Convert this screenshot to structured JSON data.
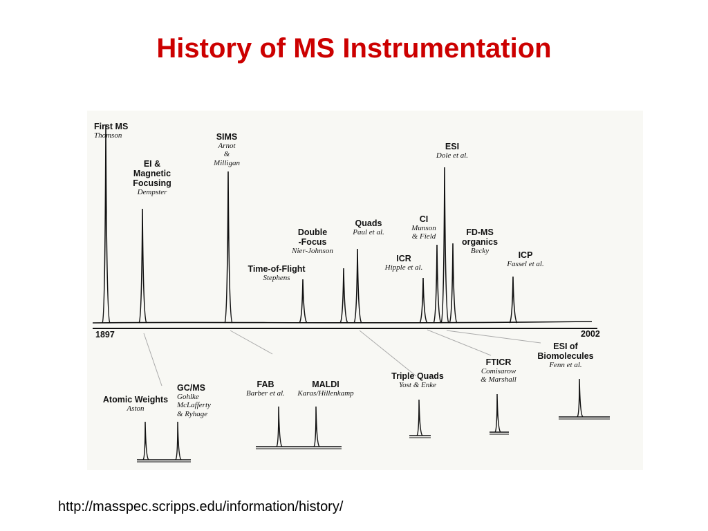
{
  "title": "History of MS Instrumentation",
  "axis": {
    "start_year": "1897",
    "end_year": "2002"
  },
  "upper_events": [
    {
      "id": "first-ms",
      "name": [
        "First MS"
      ],
      "authors": [
        "Thomson"
      ]
    },
    {
      "id": "ei-magnetic-focusing",
      "name": [
        "EI &",
        "Magnetic",
        "Focusing"
      ],
      "authors": [
        "Dempster"
      ]
    },
    {
      "id": "sims",
      "name": [
        "SIMS"
      ],
      "authors": [
        "Arnot",
        "&",
        "Milligan"
      ]
    },
    {
      "id": "time-of-flight",
      "name": [
        "Time-of-Flight"
      ],
      "authors": [
        "Stephens"
      ]
    },
    {
      "id": "double-focus",
      "name": [
        "Double",
        "-Focus"
      ],
      "authors": [
        "Nier-Johnson"
      ]
    },
    {
      "id": "quads",
      "name": [
        "Quads"
      ],
      "authors": [
        "Paul et al."
      ]
    },
    {
      "id": "icr",
      "name": [
        "ICR"
      ],
      "authors": [
        "Hipple et al."
      ]
    },
    {
      "id": "ci",
      "name": [
        "CI"
      ],
      "authors": [
        "Munson",
        "& Field"
      ]
    },
    {
      "id": "esi",
      "name": [
        "ESI"
      ],
      "authors": [
        "Dole et al."
      ]
    },
    {
      "id": "fd-ms-organics",
      "name": [
        "FD-MS",
        "organics"
      ],
      "authors": [
        "Becky"
      ]
    },
    {
      "id": "icp",
      "name": [
        "ICP"
      ],
      "authors": [
        "Fassel et al."
      ]
    }
  ],
  "lower_events": [
    {
      "id": "atomic-weights",
      "name": [
        "Atomic Weights"
      ],
      "authors": [
        "Aston"
      ]
    },
    {
      "id": "gc-ms",
      "name": [
        "GC/MS"
      ],
      "authors": [
        "Gohlke",
        "McLafferty",
        "& Ryhage"
      ]
    },
    {
      "id": "fab",
      "name": [
        "FAB"
      ],
      "authors": [
        "Barber et al."
      ]
    },
    {
      "id": "maldi",
      "name": [
        "MALDI"
      ],
      "authors": [
        "Karas/Hillenkamp"
      ]
    },
    {
      "id": "triple-quads",
      "name": [
        "Triple Quads"
      ],
      "authors": [
        "Yost & Enke"
      ]
    },
    {
      "id": "fticr",
      "name": [
        "FTICR"
      ],
      "authors": [
        "Comisarow",
        "& Marshall"
      ]
    },
    {
      "id": "esi-biomolecules",
      "name": [
        "ESI of",
        "Biomolecules"
      ],
      "authors": [
        "Fenn et al."
      ]
    }
  ],
  "source_url": "http://masspec.scripps.edu/information/history/",
  "colors": {
    "title": "#cc0000",
    "panel": "#f8f8f4",
    "ink": "#111111",
    "leader": "#aaaaaa"
  }
}
